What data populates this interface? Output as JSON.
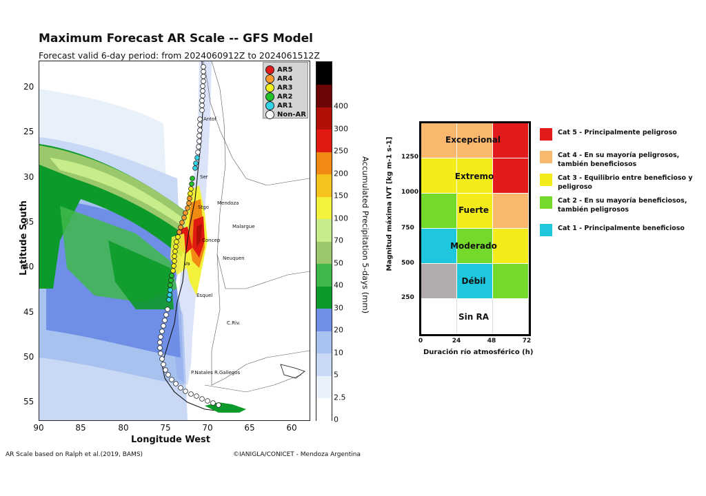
{
  "header": {
    "title": "Maximum Forecast AR Scale -- GFS Model",
    "subtitle": "Forecast valid 6-day period: from 2024060912Z to 2024061512Z"
  },
  "map": {
    "ylabel": "Latitude South",
    "xlabel": "Longitude West",
    "lat_ticks": [
      "20",
      "25",
      "30",
      "35",
      "40",
      "45",
      "50",
      "55"
    ],
    "lon_ticks": [
      "90",
      "85",
      "80",
      "75",
      "70",
      "65",
      "60"
    ],
    "cities": [
      {
        "name": "Antof"
      },
      {
        "name": "Ser"
      },
      {
        "name": "Stgo"
      },
      {
        "name": "Mendoza"
      },
      {
        "name": "Malargue"
      },
      {
        "name": "Concep"
      },
      {
        "name": "Neuquen"
      },
      {
        "name": "Va"
      },
      {
        "name": "Esquel"
      },
      {
        "name": "C.Riv."
      },
      {
        "name": "P.Natales"
      },
      {
        "name": "R.Gallegos"
      }
    ],
    "legend": [
      {
        "label": "AR5",
        "color": "#e31a1c"
      },
      {
        "label": "AR4",
        "color": "#ff9a2e"
      },
      {
        "label": "AR3",
        "color": "#f4f01a"
      },
      {
        "label": "AR2",
        "color": "#22c22a"
      },
      {
        "label": "AR1",
        "color": "#31d2e6"
      },
      {
        "label": "Non-AR",
        "color": "#ffffff"
      }
    ]
  },
  "colorbar": {
    "title": "Accumulated Precipitation 5-days (mm)",
    "labels": [
      "0",
      "2.5",
      "5",
      "10",
      "20",
      "30",
      "40",
      "50",
      "70",
      "100",
      "150",
      "200",
      "250",
      "300",
      "400"
    ],
    "colors": [
      "#ffffff",
      "#e8f0fa",
      "#c9d8f4",
      "#a8c2f0",
      "#6f8fe6",
      "#0c9a2a",
      "#3fb84a",
      "#9bc86a",
      "#c7ec8a",
      "#f2f23c",
      "#f5c21e",
      "#f08a12",
      "#e01a10",
      "#b01008",
      "#6a0606",
      "#000000"
    ]
  },
  "footer": {
    "left": "AR Scale based on Ralph et al.(2019, BAMS)",
    "right": "©IANIGLA/CONICET - Mendoza Argentina"
  },
  "matrix": {
    "ylabel": "Magnitud máxima IVT  [kg m-1 s-1]",
    "xlabel": "Duración río atmosférico (h)",
    "y_ticks": [
      "250",
      "500",
      "750",
      "1000",
      "1250"
    ],
    "x_ticks": [
      "0",
      "24",
      "48",
      "72"
    ],
    "category_labels": [
      "Excepcional",
      "Extremo",
      "Fuerte",
      "Moderado",
      "Débil",
      "Sin RA"
    ],
    "cells": [
      [
        "#f9b86e",
        "#f9b86e",
        "#e31a1c"
      ],
      [
        "#f4ec1a",
        "#f4ec1a",
        "#e31a1c"
      ],
      [
        "#73d92b",
        "#f4ec1a",
        "#f9b86e"
      ],
      [
        "#1ec7de",
        "#73d92b",
        "#f4ec1a"
      ],
      [
        "#b3acac",
        "#1ec7de",
        "#73d92b"
      ],
      [
        "#ffffff",
        "#ffffff",
        "#ffffff"
      ]
    ]
  },
  "categories": [
    {
      "label": "Cat 5 - Principalmente peligroso",
      "color": "#e31a1c"
    },
    {
      "label": "Cat 4 - En su mayoría peligrosos, también beneficiosos",
      "color": "#f9b86e"
    },
    {
      "label": "Cat 3 - Equilibrio entre beneficioso y peligroso",
      "color": "#f4ec1a"
    },
    {
      "label": "Cat 2 - En su mayoría beneficiosos, también peligrosos",
      "color": "#73d92b"
    },
    {
      "label": "Cat 1 - Principalmente beneficioso",
      "color": "#1ec7de"
    }
  ]
}
